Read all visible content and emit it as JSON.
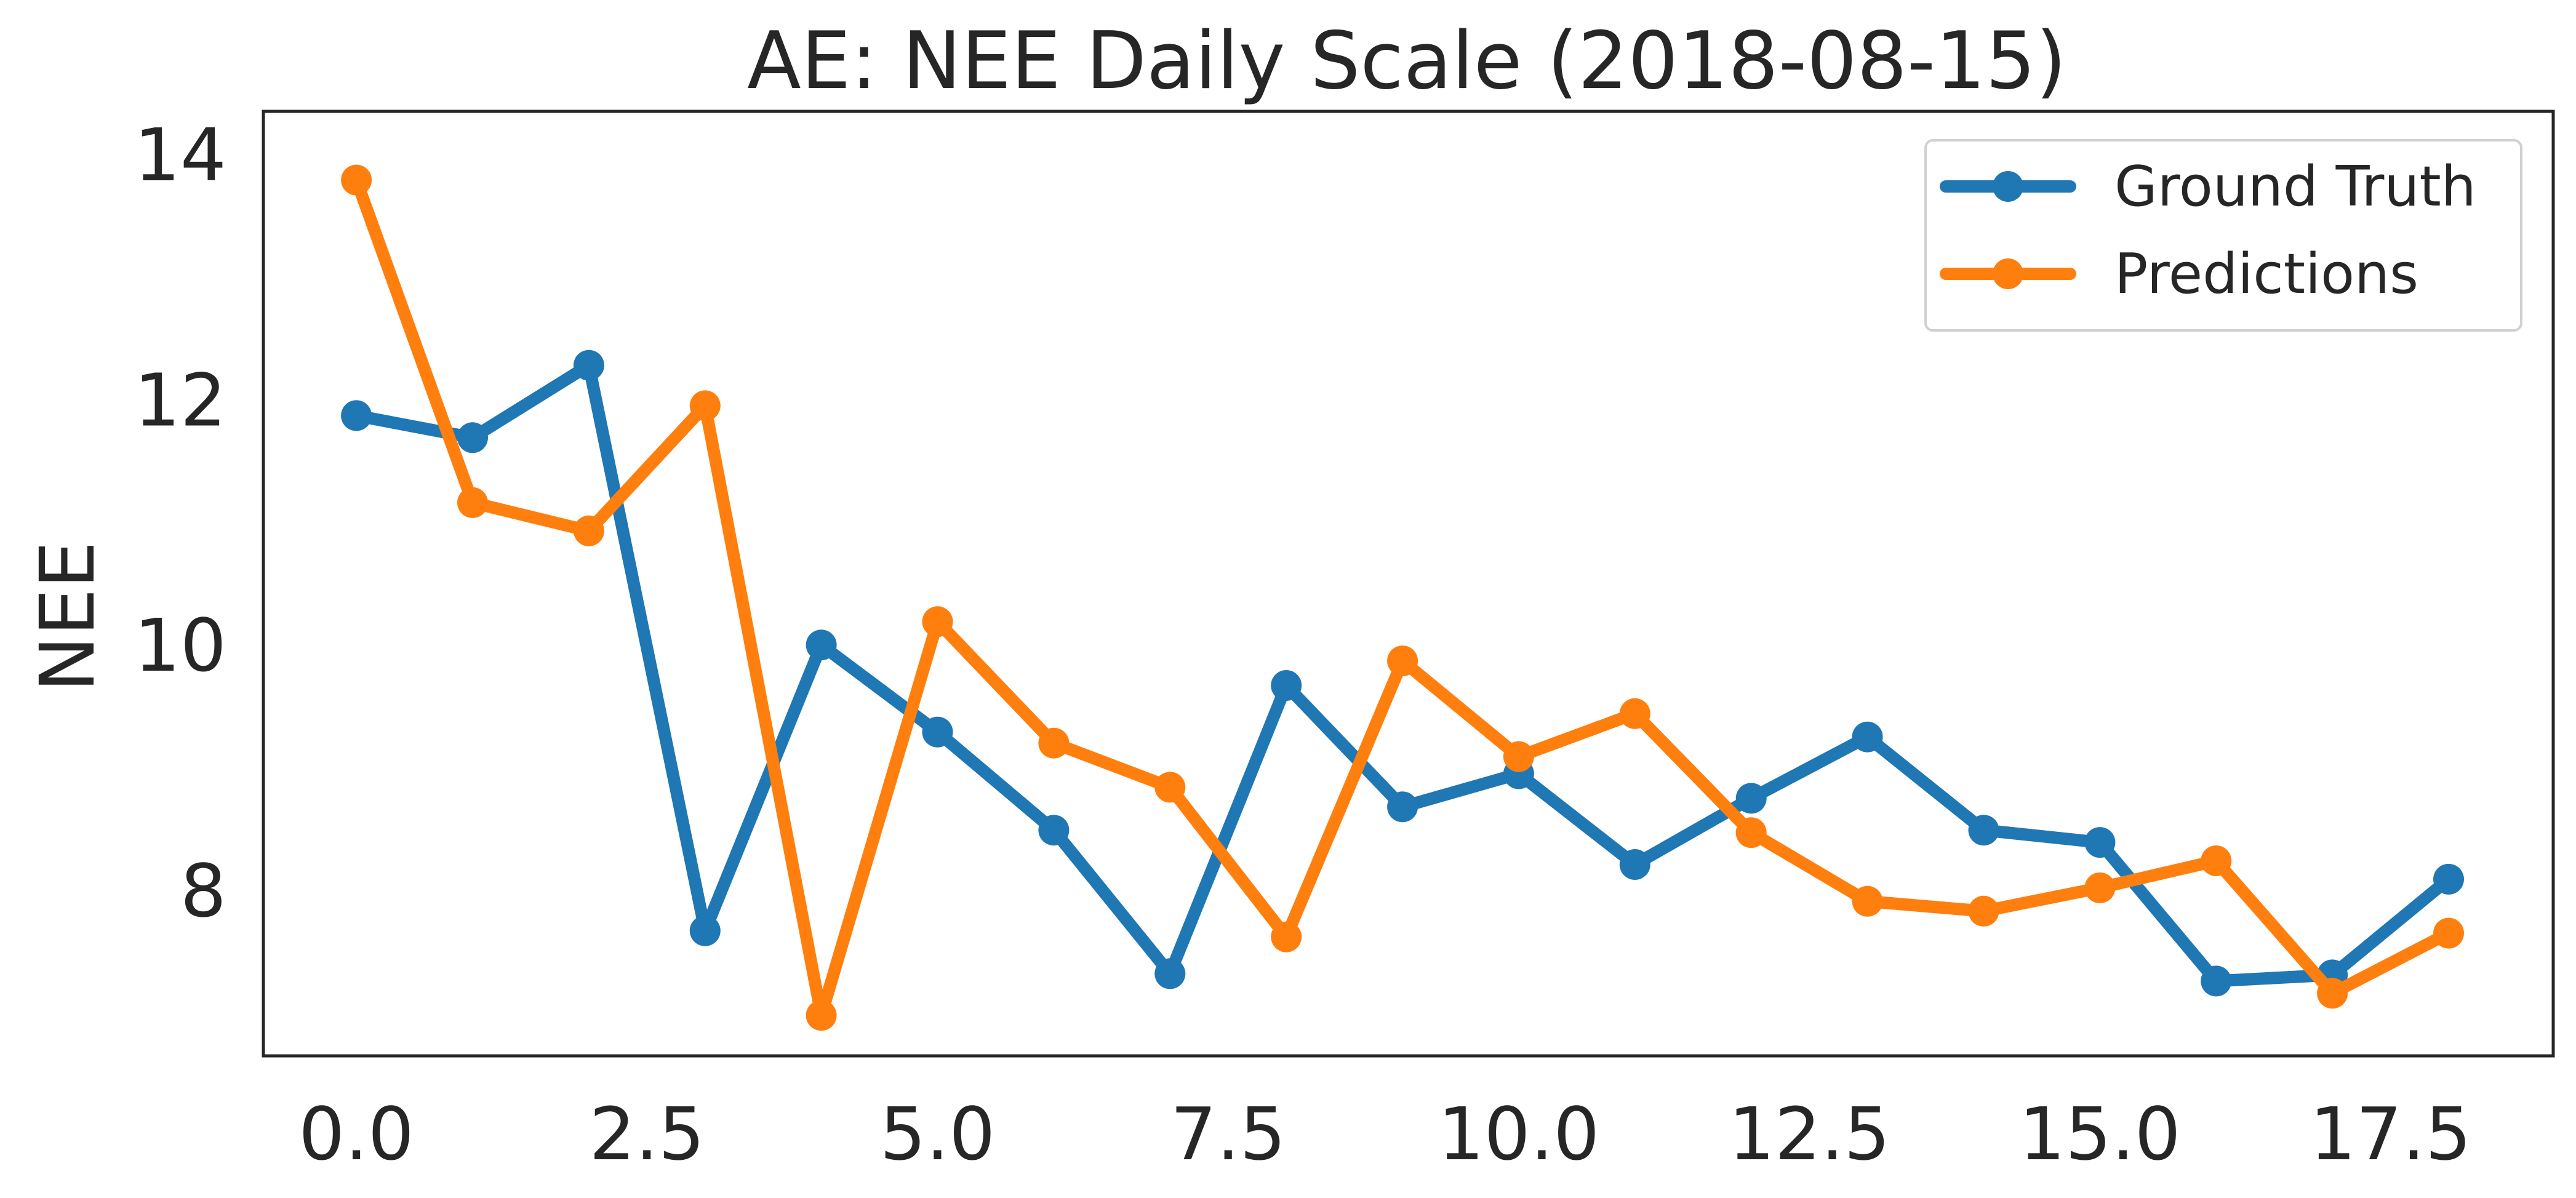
{
  "chart_data": {
    "type": "line",
    "title": "AE: NEE Daily Scale (2018-08-15)",
    "xlabel": "",
    "ylabel": "NEE",
    "xlim": [
      -0.8,
      18.9
    ],
    "ylim": [
      6.65,
      14.35
    ],
    "xticks": [
      0.0,
      2.5,
      5.0,
      7.5,
      10.0,
      12.5,
      15.0,
      17.5
    ],
    "xtick_labels": [
      "0.0",
      "2.5",
      "5.0",
      "7.5",
      "10.0",
      "12.5",
      "15.0",
      "17.5"
    ],
    "yticks": [
      8,
      10,
      12,
      14
    ],
    "ytick_labels": [
      "8",
      "10",
      "12",
      "14"
    ],
    "grid": false,
    "legend_position": "upper right",
    "x": [
      0,
      1,
      2,
      3,
      4,
      5,
      6,
      7,
      8,
      9,
      10,
      11,
      12,
      13,
      14,
      15,
      16,
      17,
      18
    ],
    "series": [
      {
        "name": "Ground Truth",
        "color": "#1f77b4",
        "values": [
          11.87,
          11.69,
          12.28,
          7.67,
          10.0,
          9.29,
          8.49,
          7.32,
          9.67,
          8.68,
          8.95,
          8.21,
          8.75,
          9.25,
          8.49,
          8.39,
          7.26,
          7.31,
          8.09
        ]
      },
      {
        "name": "Predictions",
        "color": "#ff7f0e",
        "values": [
          13.79,
          11.16,
          10.93,
          11.95,
          6.98,
          10.19,
          9.2,
          8.84,
          7.62,
          9.87,
          9.09,
          9.44,
          8.47,
          7.91,
          7.83,
          8.02,
          8.24,
          7.16,
          7.65
        ]
      }
    ]
  }
}
